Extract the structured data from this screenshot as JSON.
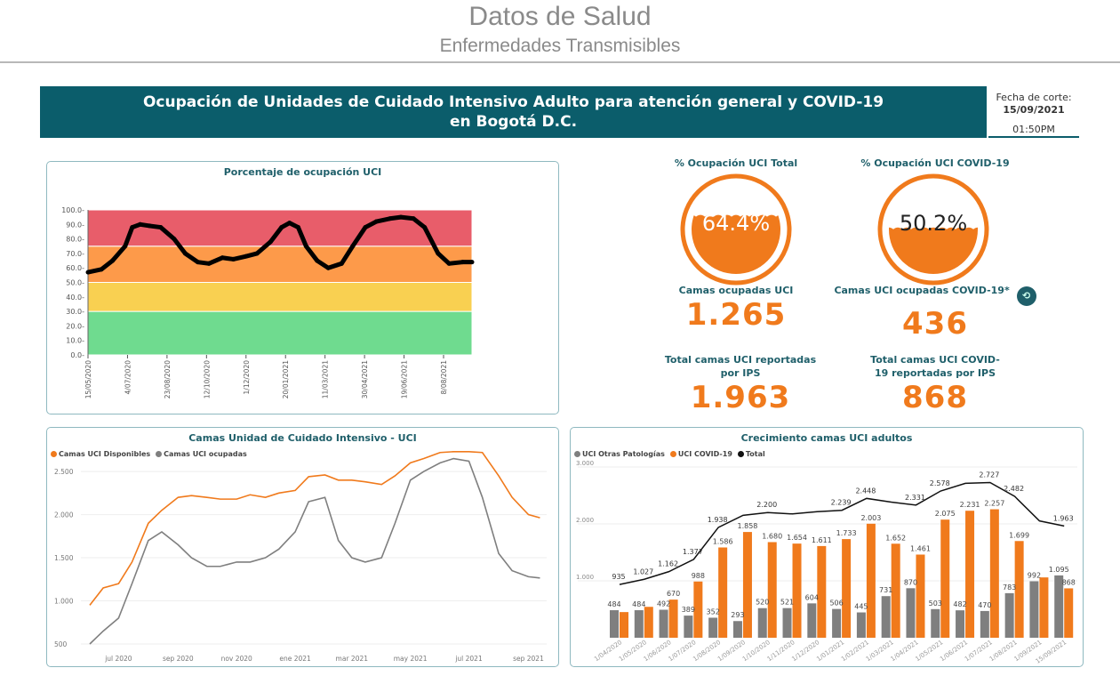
{
  "header": {
    "title": "Datos de Salud",
    "subtitle": "Enfermedades Transmisibles"
  },
  "banner": {
    "line1": "Ocupación de Unidades de Cuidado Intensivo Adulto para atención general y COVID-19",
    "line2": "en Bogotá D.C."
  },
  "cutoff": {
    "label": "Fecha de corte:",
    "date": "15/09/2021",
    "time": "01:50PM"
  },
  "colors": {
    "teal": "#0b5d6b",
    "orange": "#f07a1c",
    "grey": "#7f7f7f",
    "red": "#e85d6a",
    "band_orange": "#fd9a4a",
    "yellow": "#f9d051",
    "green": "#6fdb8f"
  },
  "kpis": {
    "pct_total": {
      "label": "% Ocupación UCI Total",
      "value": "64.4%",
      "fill": 64.4
    },
    "pct_covid": {
      "label": "% Ocupación UCI COVID-19",
      "value": "50.2%",
      "fill": 50.2
    },
    "beds_occupied": {
      "label": "Camas ocupadas UCI",
      "value": "1.265"
    },
    "beds_covid_occupied": {
      "label": "Camas UCI ocupadas COVID-19*",
      "value": "436",
      "icon": "info-badge-icon"
    },
    "beds_total": {
      "label": "Total camas UCI reportadas por IPS",
      "value": "1.963"
    },
    "beds_covid_total": {
      "label": "Total camas UCI COVID-19 reportadas por IPS",
      "value": "868"
    }
  },
  "chart_data": [
    {
      "type": "line",
      "title": "Porcentaje de ocupación UCI",
      "ylim": [
        0,
        100
      ],
      "yticks": [
        "0.0",
        "10.0",
        "20.0",
        "30.0",
        "40.0",
        "50.0",
        "60.0",
        "70.0",
        "80.0",
        "90.0",
        "100.0"
      ],
      "xticks": [
        "15/05/2020",
        "4/07/2020",
        "23/08/2020",
        "12/10/2020",
        "1/12/2020",
        "20/01/2021",
        "11/03/2021",
        "30/04/2021",
        "19/06/2021",
        "8/08/2021"
      ],
      "bands": [
        {
          "from": 0,
          "to": 30,
          "color": "#6fdb8f"
        },
        {
          "from": 30,
          "to": 50,
          "color": "#f9d051"
        },
        {
          "from": 50,
          "to": 75,
          "color": "#fd9a4a"
        },
        {
          "from": 75,
          "to": 100,
          "color": "#e85d6a"
        }
      ],
      "x": [
        "2020-05-15",
        "2020-06-01",
        "2020-06-15",
        "2020-07-01",
        "2020-07-10",
        "2020-07-20",
        "2020-08-01",
        "2020-08-15",
        "2020-09-01",
        "2020-09-15",
        "2020-10-01",
        "2020-10-15",
        "2020-11-01",
        "2020-11-15",
        "2020-12-01",
        "2020-12-15",
        "2021-01-01",
        "2021-01-15",
        "2021-01-25",
        "2021-02-05",
        "2021-02-15",
        "2021-03-01",
        "2021-03-15",
        "2021-04-01",
        "2021-04-15",
        "2021-05-01",
        "2021-05-15",
        "2021-06-01",
        "2021-06-15",
        "2021-07-01",
        "2021-07-15",
        "2021-08-01",
        "2021-08-15",
        "2021-09-01",
        "2021-09-13"
      ],
      "y": [
        57,
        59,
        65,
        75,
        88,
        90,
        89,
        88,
        80,
        70,
        64,
        63,
        67,
        66,
        68,
        70,
        78,
        88,
        91,
        88,
        75,
        65,
        60,
        63,
        75,
        88,
        92,
        94,
        95,
        94,
        88,
        70,
        63,
        64,
        64
      ]
    },
    {
      "type": "line",
      "title": "Camas Unidad de Cuidado Intensivo - UCI",
      "ylim": [
        500,
        2800
      ],
      "yticks": [
        "500",
        "1.000",
        "1.500",
        "2.000",
        "2.500"
      ],
      "xticks": [
        "jul 2020",
        "sep 2020",
        "nov 2020",
        "ene 2021",
        "mar 2021",
        "may 2021",
        "jul 2021",
        "sep 2021"
      ],
      "x": [
        "2020-06-01",
        "2020-06-15",
        "2020-07-01",
        "2020-07-15",
        "2020-08-01",
        "2020-08-15",
        "2020-09-01",
        "2020-09-15",
        "2020-10-01",
        "2020-10-15",
        "2020-11-01",
        "2020-11-15",
        "2020-12-01",
        "2020-12-15",
        "2021-01-01",
        "2021-01-15",
        "2021-02-01",
        "2021-02-15",
        "2021-03-01",
        "2021-03-15",
        "2021-04-01",
        "2021-04-15",
        "2021-05-01",
        "2021-05-15",
        "2021-06-01",
        "2021-06-15",
        "2021-07-01",
        "2021-07-15",
        "2021-08-01",
        "2021-08-15",
        "2021-09-01",
        "2021-09-13"
      ],
      "series": [
        {
          "name": "Camas UCI Disponibles",
          "color": "#f07a1c",
          "values": [
            950,
            1150,
            1200,
            1450,
            1900,
            2050,
            2200,
            2220,
            2200,
            2180,
            2180,
            2230,
            2200,
            2250,
            2280,
            2440,
            2460,
            2400,
            2400,
            2380,
            2350,
            2450,
            2600,
            2650,
            2720,
            2730,
            2730,
            2720,
            2450,
            2200,
            2000,
            1963
          ]
        },
        {
          "name": "Camas UCI ocupadas",
          "color": "#7f7f7f",
          "values": [
            500,
            650,
            800,
            1200,
            1700,
            1800,
            1650,
            1500,
            1400,
            1400,
            1450,
            1450,
            1500,
            1600,
            1800,
            2150,
            2200,
            1700,
            1500,
            1450,
            1500,
            1900,
            2400,
            2500,
            2600,
            2650,
            2620,
            2200,
            1550,
            1350,
            1280,
            1265
          ]
        }
      ]
    },
    {
      "type": "bar",
      "title": "Crecimiento camas UCI adultos",
      "ylim": [
        0,
        3000
      ],
      "yticks": [
        "1.000",
        "2.000",
        "3.000"
      ],
      "categories": [
        "1/04/2020",
        "1/05/2020",
        "1/06/2020",
        "1/07/2020",
        "1/08/2020",
        "1/09/2020",
        "1/10/2020",
        "1/11/2020",
        "1/12/2020",
        "1/01/2021",
        "1/02/2021",
        "1/03/2021",
        "1/04/2021",
        "1/05/2021",
        "1/06/2021",
        "1/07/2021",
        "1/08/2021",
        "1/09/2021",
        "15/09/2021"
      ],
      "series": [
        {
          "name": "UCI Otras Patologías",
          "color": "#7f7f7f",
          "values": [
            484,
            484,
            492,
            389,
            352,
            293,
            520,
            521,
            604,
            506,
            445,
            731,
            870,
            503,
            482,
            470,
            783,
            992,
            1095
          ],
          "labels": [
            "484",
            "484",
            "492",
            "389",
            "352",
            "293",
            "520",
            "521",
            "604",
            "506",
            "445",
            "731",
            "870",
            "503",
            "482",
            "470",
            "783",
            "992",
            "1.095"
          ]
        },
        {
          "name": "UCI COVID-19",
          "color": "#f07a1c",
          "values": [
            451,
            543,
            670,
            988,
            1586,
            1858,
            1680,
            1654,
            1611,
            1733,
            2003,
            1652,
            1461,
            2075,
            2231,
            2257,
            1699,
            1060,
            868
          ],
          "labels": [
            "",
            "",
            "670",
            "988",
            "1.586",
            "1.858",
            "1.680",
            "1.654",
            "1.611",
            "1.733",
            "2.003",
            "1.652",
            "1.461",
            "2.075",
            "2.231",
            "2.257",
            "1.699",
            "",
            "868"
          ]
        },
        {
          "name": "Total",
          "color": "#111111",
          "values": [
            935,
            1027,
            1162,
            1377,
            1938,
            2151,
            2200,
            2175,
            2215,
            2239,
            2448,
            2383,
            2331,
            2578,
            2713,
            2727,
            2482,
            2052,
            1963
          ],
          "labels": [
            "935",
            "1.027",
            "1.162",
            "1.377",
            "1.938",
            "",
            "2.200",
            "",
            "",
            "2.239",
            "2.448",
            "",
            "2.331",
            "2.578",
            "",
            "2.727",
            "2.482",
            "",
            "1.963"
          ]
        }
      ]
    }
  ]
}
